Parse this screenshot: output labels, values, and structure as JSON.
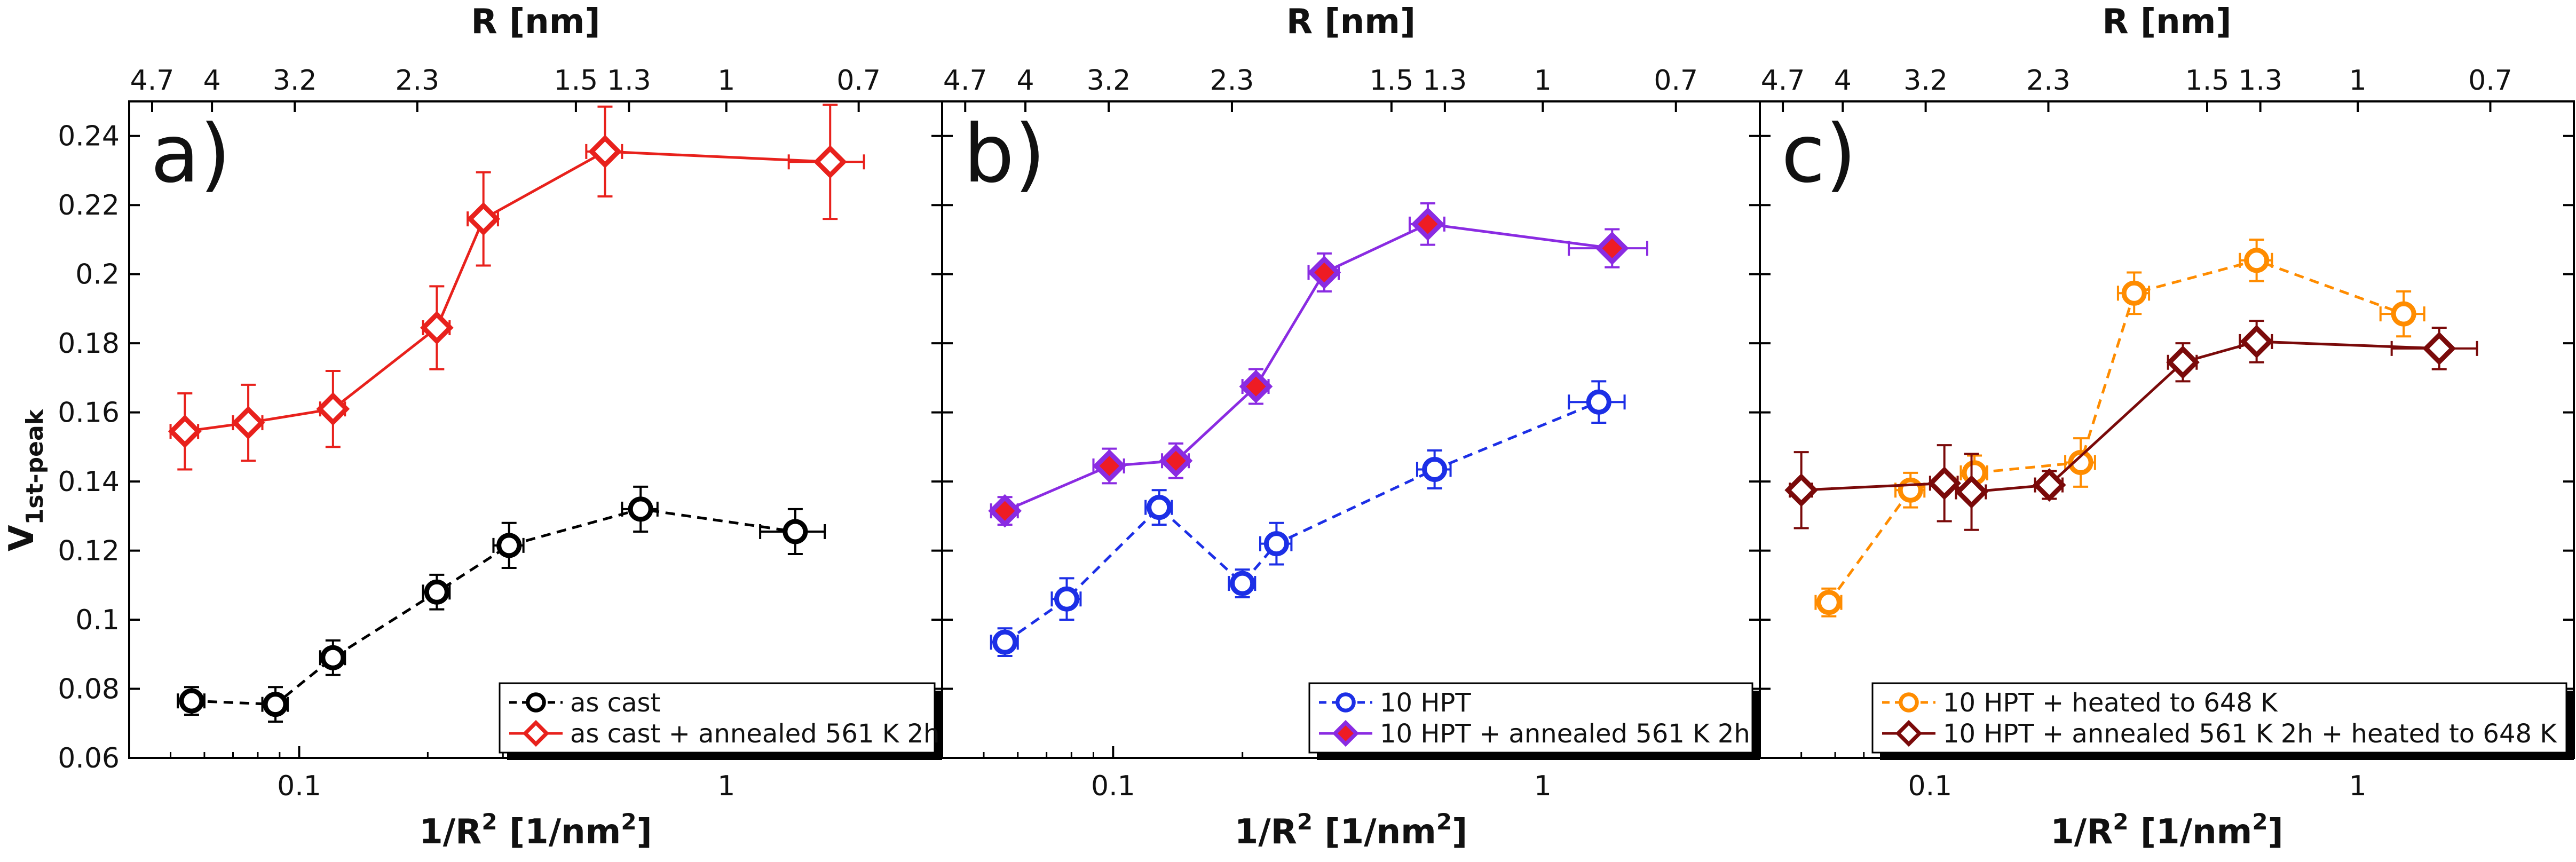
{
  "figure": {
    "ylabel_main": "V",
    "ylabel_sub": "1st-peak",
    "xlabel_main": "1/R",
    "xlabel_sup": "2",
    "xlabel_unit_a": " [1/nm",
    "xlabel_unit_sup": "2",
    "xlabel_unit_b": "]",
    "top_label": "R [nm]"
  },
  "chart_data": [
    {
      "type": "scatter",
      "panel": "a)",
      "xscale": "log",
      "xlim": [
        0.04,
        3.2
      ],
      "ylim": [
        0.06,
        0.25
      ],
      "xticks": [
        0.1,
        1
      ],
      "xtick_labels": [
        "0.1",
        "1"
      ],
      "yticks": [
        0.06,
        0.08,
        0.1,
        0.12,
        0.14,
        0.16,
        0.18,
        0.2,
        0.22,
        0.24
      ],
      "ytick_labels": [
        "0.06",
        "0.08",
        "0.1",
        "0.12",
        "0.14",
        "0.16",
        "0.18",
        "0.2",
        "0.22",
        "0.24"
      ],
      "top_ticks": [
        4.7,
        4,
        3.2,
        2.3,
        1.5,
        1.3,
        1,
        0.7
      ],
      "top_tick_labels": [
        "4.7",
        "4",
        "3.2",
        "2.3",
        "1.5",
        "1.3",
        "1",
        "0.7"
      ],
      "legend_position": "bottom-right",
      "series": [
        {
          "name": "as cast",
          "color": "#000000",
          "marker": "circle",
          "dashed": true,
          "filled": false,
          "fill": "none",
          "x": [
            0.056,
            0.088,
            0.12,
            0.21,
            0.31,
            0.63,
            1.45
          ],
          "y": [
            0.0765,
            0.0755,
            0.089,
            0.108,
            0.1215,
            0.132,
            0.1255
          ],
          "yerr": [
            0.004,
            0.005,
            0.005,
            0.005,
            0.0065,
            0.0065,
            0.0065
          ],
          "xerr": [
            0.004,
            0.006,
            0.008,
            0.015,
            0.025,
            0.06,
            0.25
          ]
        },
        {
          "name": "as cast + annealed 561 K 2h",
          "color": "#e8211c",
          "marker": "diamond",
          "dashed": false,
          "filled": false,
          "fill": "none",
          "x": [
            0.054,
            0.076,
            0.12,
            0.21,
            0.27,
            0.52,
            1.75
          ],
          "y": [
            0.1545,
            0.157,
            0.161,
            0.1845,
            0.216,
            0.2355,
            0.2325
          ],
          "yerr": [
            0.011,
            0.011,
            0.011,
            0.012,
            0.0135,
            0.013,
            0.0165
          ],
          "xerr": [
            0.004,
            0.006,
            0.008,
            0.015,
            0.022,
            0.05,
            0.35
          ]
        }
      ]
    },
    {
      "type": "scatter",
      "panel": "b)",
      "xscale": "log",
      "xlim": [
        0.04,
        3.2
      ],
      "ylim": [
        0.06,
        0.25
      ],
      "xticks": [
        0.1,
        1
      ],
      "xtick_labels": [
        "0.1",
        "1"
      ],
      "yticks": [
        0.06,
        0.08,
        0.1,
        0.12,
        0.14,
        0.16,
        0.18,
        0.2,
        0.22,
        0.24
      ],
      "ytick_labels": [
        "0.06",
        "0.08",
        "0.1",
        "0.12",
        "0.14",
        "0.16",
        "0.18",
        "0.2",
        "0.22",
        "0.24"
      ],
      "top_ticks": [
        4.7,
        4,
        3.2,
        2.3,
        1.5,
        1.3,
        1,
        0.7
      ],
      "top_tick_labels": [
        "4.7",
        "4",
        "3.2",
        "2.3",
        "1.5",
        "1.3",
        "1",
        "0.7"
      ],
      "legend_position": "bottom-right",
      "series": [
        {
          "name": "10 HPT",
          "color": "#1c2fe6",
          "marker": "circle",
          "dashed": true,
          "filled": false,
          "fill": "none",
          "x": [
            0.056,
            0.078,
            0.128,
            0.2,
            0.24,
            0.56,
            1.35
          ],
          "y": [
            0.0935,
            0.106,
            0.1325,
            0.1105,
            0.122,
            0.1435,
            0.163
          ],
          "yerr": [
            0.004,
            0.006,
            0.005,
            0.004,
            0.006,
            0.0055,
            0.006
          ],
          "xerr": [
            0.004,
            0.006,
            0.009,
            0.014,
            0.02,
            0.05,
            0.2
          ]
        },
        {
          "name": "10 HPT + annealed 561 K 2h",
          "color": "#8a2be2",
          "marker": "diamond",
          "dashed": false,
          "filled": true,
          "fill": "#ee1c24",
          "x": [
            0.056,
            0.098,
            0.14,
            0.215,
            0.31,
            0.54,
            1.45
          ],
          "y": [
            0.1315,
            0.1445,
            0.146,
            0.1675,
            0.2005,
            0.2145,
            0.2075
          ],
          "yerr": [
            0.004,
            0.005,
            0.005,
            0.005,
            0.0055,
            0.006,
            0.0055
          ],
          "xerr": [
            0.004,
            0.008,
            0.01,
            0.015,
            0.025,
            0.05,
            0.3
          ]
        }
      ]
    },
    {
      "type": "scatter",
      "panel": "c)",
      "xscale": "log",
      "xlim": [
        0.04,
        3.2
      ],
      "ylim": [
        0.06,
        0.25
      ],
      "xticks": [
        0.1,
        1
      ],
      "xtick_labels": [
        "0.1",
        "1"
      ],
      "yticks": [
        0.06,
        0.08,
        0.1,
        0.12,
        0.14,
        0.16,
        0.18,
        0.2,
        0.22,
        0.24
      ],
      "ytick_labels": [
        "0.06",
        "0.08",
        "0.1",
        "0.12",
        "0.14",
        "0.16",
        "0.18",
        "0.2",
        "0.22",
        "0.24"
      ],
      "top_ticks": [
        4.7,
        4,
        3.2,
        2.3,
        1.5,
        1.3,
        1,
        0.7
      ],
      "top_tick_labels": [
        "4.7",
        "4",
        "3.2",
        "2.3",
        "1.5",
        "1.3",
        "1",
        "0.7"
      ],
      "legend_position": "bottom-right",
      "series": [
        {
          "name": "10 HPT + heated to 648 K",
          "color": "#ff8c00",
          "marker": "circle",
          "dashed": true,
          "filled": false,
          "fill": "none",
          "x": [
            0.058,
            0.09,
            0.127,
            0.225,
            0.3,
            0.58,
            1.28
          ],
          "y": [
            0.105,
            0.1375,
            0.1425,
            0.1455,
            0.1945,
            0.204,
            0.1885
          ],
          "yerr": [
            0.004,
            0.005,
            0.005,
            0.007,
            0.006,
            0.006,
            0.0065
          ],
          "xerr": [
            0.004,
            0.007,
            0.009,
            0.018,
            0.025,
            0.05,
            0.15
          ]
        },
        {
          "name": "10 HPT + annealed 561 K 2h + heated to 648 K",
          "color": "#7a0a0a",
          "marker": "diamond",
          "dashed": false,
          "filled": false,
          "fill": "none",
          "x": [
            0.05,
            0.108,
            0.125,
            0.19,
            0.39,
            0.58,
            1.55
          ],
          "y": [
            0.1375,
            0.1395,
            0.137,
            0.139,
            0.1745,
            0.1805,
            0.1785
          ],
          "yerr": [
            0.011,
            0.011,
            0.011,
            0.004,
            0.0055,
            0.006,
            0.006
          ],
          "xerr": [
            0.003,
            0.008,
            0.01,
            0.014,
            0.03,
            0.05,
            0.35
          ]
        }
      ]
    }
  ]
}
